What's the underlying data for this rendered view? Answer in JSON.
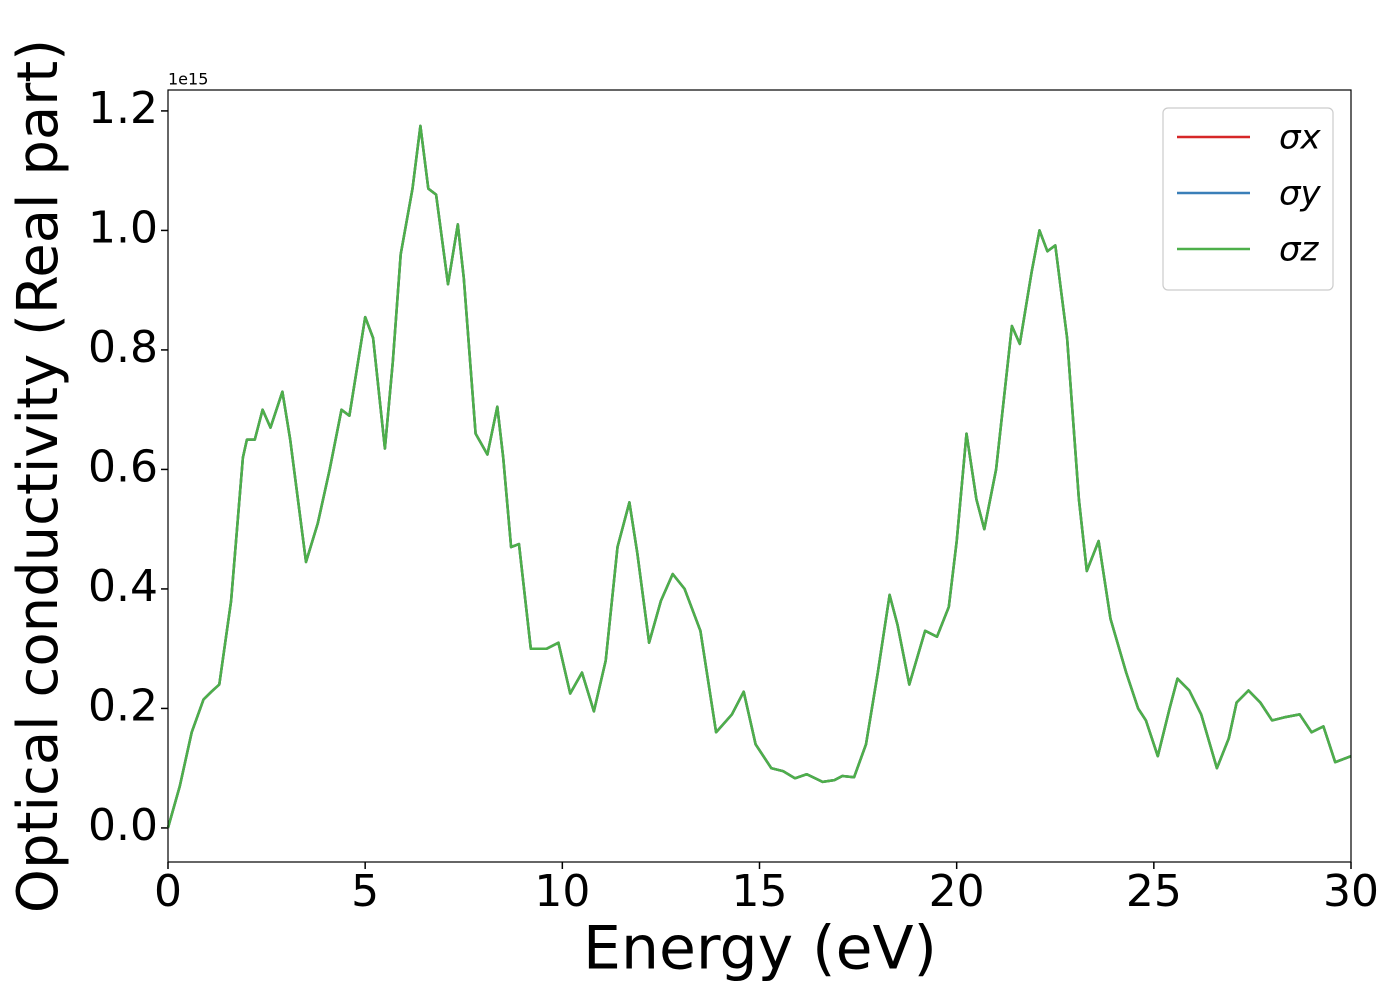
{
  "chart_data": {
    "type": "line",
    "xlabel": "Energy (eV)",
    "ylabel": "Optical conductivity (Real part)",
    "offset_text": "1e15",
    "xlim": [
      0,
      30
    ],
    "xticks": [
      0,
      5,
      10,
      15,
      20,
      25,
      30
    ],
    "ylim": [
      -0.057,
      1.235
    ],
    "yticks": [
      {
        "value": 0,
        "label": "0.0"
      },
      0.2,
      0.4,
      0.6,
      0.8,
      {
        "value": 1,
        "label": "1.0"
      },
      1.2
    ],
    "legend": "upper right",
    "grid": false,
    "x": [
      0,
      0.3,
      0.6,
      0.9,
      1.1,
      1.3,
      1.6,
      1.9,
      2.0,
      2.2,
      2.4,
      2.6,
      2.9,
      3.1,
      3.5,
      3.8,
      4.1,
      4.4,
      4.6,
      5.0,
      5.2,
      5.5,
      5.7,
      5.9,
      6.2,
      6.4,
      6.6,
      6.8,
      7.1,
      7.35,
      7.5,
      7.8,
      8.1,
      8.35,
      8.5,
      8.7,
      8.9,
      9.2,
      9.6,
      9.9,
      10.2,
      10.5,
      10.8,
      11.1,
      11.4,
      11.7,
      11.9,
      12.2,
      12.5,
      12.8,
      13.1,
      13.5,
      13.9,
      14.3,
      14.6,
      14.9,
      15.3,
      15.6,
      15.9,
      16.2,
      16.6,
      16.9,
      17.1,
      17.4,
      17.7,
      18.0,
      18.3,
      18.5,
      18.8,
      19.2,
      19.5,
      19.8,
      20.0,
      20.25,
      20.5,
      20.7,
      21.0,
      21.4,
      21.6,
      21.9,
      22.1,
      22.3,
      22.5,
      22.8,
      23.1,
      23.3,
      23.6,
      23.9,
      24.3,
      24.6,
      24.8,
      25.1,
      25.4,
      25.6,
      25.9,
      26.2,
      26.6,
      26.9,
      27.1,
      27.4,
      27.7,
      28.0,
      28.3,
      28.7,
      29.0,
      29.3,
      29.6,
      30.0
    ],
    "series": [
      {
        "name": "σx",
        "color": "#d62728",
        "values": [
          0,
          0.07,
          0.16,
          0.215,
          0.228,
          0.24,
          0.38,
          0.62,
          0.65,
          0.65,
          0.7,
          0.67,
          0.73,
          0.65,
          0.445,
          0.51,
          0.6,
          0.7,
          0.69,
          0.855,
          0.82,
          0.635,
          0.78,
          0.96,
          1.07,
          1.175,
          1.07,
          1.06,
          0.91,
          1.01,
          0.92,
          0.66,
          0.625,
          0.705,
          0.62,
          0.47,
          0.475,
          0.3,
          0.3,
          0.31,
          0.225,
          0.26,
          0.195,
          0.28,
          0.47,
          0.545,
          0.46,
          0.31,
          0.38,
          0.425,
          0.4,
          0.33,
          0.16,
          0.19,
          0.228,
          0.14,
          0.1,
          0.095,
          0.083,
          0.09,
          0.077,
          0.08,
          0.087,
          0.085,
          0.14,
          0.26,
          0.39,
          0.34,
          0.24,
          0.33,
          0.32,
          0.37,
          0.48,
          0.66,
          0.55,
          0.5,
          0.6,
          0.84,
          0.81,
          0.93,
          1.0,
          0.965,
          0.975,
          0.82,
          0.55,
          0.43,
          0.48,
          0.35,
          0.26,
          0.2,
          0.18,
          0.12,
          0.2,
          0.25,
          0.23,
          0.19,
          0.1,
          0.15,
          0.21,
          0.23,
          0.21,
          0.18,
          0.185,
          0.19,
          0.16,
          0.17,
          0.11,
          0.12
        ]
      },
      {
        "name": "σy",
        "color": "#3a7fb8",
        "values": [
          0,
          0.07,
          0.16,
          0.215,
          0.228,
          0.24,
          0.38,
          0.62,
          0.65,
          0.65,
          0.7,
          0.67,
          0.73,
          0.65,
          0.445,
          0.51,
          0.6,
          0.7,
          0.69,
          0.855,
          0.82,
          0.635,
          0.78,
          0.96,
          1.07,
          1.175,
          1.07,
          1.06,
          0.91,
          1.01,
          0.92,
          0.66,
          0.625,
          0.705,
          0.62,
          0.47,
          0.475,
          0.3,
          0.3,
          0.31,
          0.225,
          0.26,
          0.195,
          0.28,
          0.47,
          0.545,
          0.46,
          0.31,
          0.38,
          0.425,
          0.4,
          0.33,
          0.16,
          0.19,
          0.228,
          0.14,
          0.1,
          0.095,
          0.083,
          0.09,
          0.077,
          0.08,
          0.087,
          0.085,
          0.14,
          0.26,
          0.39,
          0.34,
          0.24,
          0.33,
          0.32,
          0.37,
          0.48,
          0.66,
          0.55,
          0.5,
          0.6,
          0.84,
          0.81,
          0.93,
          1.0,
          0.965,
          0.975,
          0.82,
          0.55,
          0.43,
          0.48,
          0.35,
          0.26,
          0.2,
          0.18,
          0.12,
          0.2,
          0.25,
          0.23,
          0.19,
          0.1,
          0.15,
          0.21,
          0.23,
          0.21,
          0.18,
          0.185,
          0.19,
          0.16,
          0.17,
          0.11,
          0.12
        ]
      },
      {
        "name": "σz",
        "color": "#4daf4a",
        "values": [
          0,
          0.07,
          0.16,
          0.215,
          0.228,
          0.24,
          0.38,
          0.62,
          0.65,
          0.65,
          0.7,
          0.67,
          0.73,
          0.65,
          0.445,
          0.51,
          0.6,
          0.7,
          0.69,
          0.855,
          0.82,
          0.635,
          0.78,
          0.96,
          1.07,
          1.175,
          1.07,
          1.06,
          0.91,
          1.01,
          0.92,
          0.66,
          0.625,
          0.705,
          0.62,
          0.47,
          0.475,
          0.3,
          0.3,
          0.31,
          0.225,
          0.26,
          0.195,
          0.28,
          0.47,
          0.545,
          0.46,
          0.31,
          0.38,
          0.425,
          0.4,
          0.33,
          0.16,
          0.19,
          0.228,
          0.14,
          0.1,
          0.095,
          0.083,
          0.09,
          0.077,
          0.08,
          0.087,
          0.085,
          0.14,
          0.26,
          0.39,
          0.34,
          0.24,
          0.33,
          0.32,
          0.37,
          0.48,
          0.66,
          0.55,
          0.5,
          0.6,
          0.84,
          0.81,
          0.93,
          1.0,
          0.965,
          0.975,
          0.82,
          0.55,
          0.43,
          0.48,
          0.35,
          0.26,
          0.2,
          0.18,
          0.12,
          0.2,
          0.25,
          0.23,
          0.19,
          0.1,
          0.15,
          0.21,
          0.23,
          0.21,
          0.18,
          0.185,
          0.19,
          0.16,
          0.17,
          0.11,
          0.12
        ]
      }
    ]
  }
}
